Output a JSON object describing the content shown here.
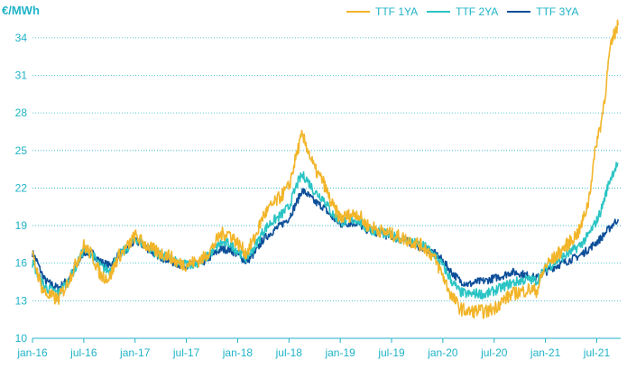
{
  "chart_data": {
    "type": "line",
    "ylabel": "€/MWh",
    "ylim": [
      10,
      35
    ],
    "yticks": [
      10,
      13,
      16,
      19,
      22,
      25,
      28,
      31,
      34
    ],
    "grid": "horizontal dotted",
    "legend_position": "top-right",
    "x_tick_labels": [
      "jan-16",
      "jul-16",
      "jan-17",
      "jul-17",
      "jan-18",
      "jul-18",
      "jan-19",
      "jul-19",
      "jan-20",
      "jul-20",
      "jan-21",
      "jul-21"
    ],
    "x_tick_months": [
      0,
      6,
      12,
      18,
      24,
      30,
      36,
      42,
      48,
      54,
      60,
      66
    ],
    "x_month_range": [
      0,
      68.8
    ],
    "series_colors": [
      "#f2b52a",
      "#2bc4c4",
      "#0c4e99"
    ],
    "series": [
      {
        "name": "TTF 1YA",
        "x": [
          0,
          0.5,
          1,
          1.5,
          2,
          3,
          4,
          5,
          6,
          7,
          8,
          9,
          10,
          11,
          12,
          13,
          14,
          15,
          16,
          17,
          18,
          19,
          20,
          21,
          22,
          23,
          24,
          25,
          26,
          27,
          28,
          29,
          30,
          31,
          31.5,
          32,
          33,
          34,
          35,
          36,
          37,
          38,
          39,
          40,
          41,
          42,
          43,
          44,
          45,
          46,
          47,
          48,
          49,
          50,
          51,
          52,
          53,
          54,
          55,
          56,
          57,
          58,
          59,
          60,
          61,
          62,
          63,
          64,
          65,
          66,
          66.5,
          67,
          67.5,
          68,
          68.5
        ],
        "values": [
          16.5,
          15.5,
          14.2,
          13.6,
          13.4,
          13.1,
          14.3,
          15.8,
          17.4,
          16.6,
          15.0,
          14.8,
          16.5,
          17.2,
          18.2,
          17.6,
          17.1,
          16.8,
          16.6,
          16.0,
          15.9,
          16.1,
          16.4,
          17.2,
          18.3,
          18.4,
          17.6,
          16.8,
          18.0,
          19.8,
          20.6,
          21.3,
          22.1,
          25.0,
          26.1,
          25.5,
          23.5,
          22.5,
          20.7,
          19.6,
          19.8,
          20.0,
          19.1,
          18.8,
          18.5,
          18.3,
          18.1,
          17.8,
          17.6,
          17.2,
          16.4,
          15.0,
          13.4,
          12.4,
          12.1,
          12.2,
          12.1,
          12.4,
          13.0,
          13.5,
          13.7,
          13.9,
          13.8,
          15.8,
          16.4,
          17.1,
          17.8,
          18.6,
          20.8,
          25.8,
          27.2,
          29.6,
          32.8,
          34.2,
          35.0
        ]
      },
      {
        "name": "TTF 2YA",
        "x": [
          0,
          0.5,
          1,
          1.5,
          2,
          3,
          4,
          5,
          6,
          7,
          8,
          9,
          10,
          11,
          12,
          13,
          14,
          15,
          16,
          17,
          18,
          19,
          20,
          21,
          22,
          23,
          24,
          25,
          26,
          27,
          28,
          29,
          30,
          31,
          31.5,
          32,
          33,
          34,
          35,
          36,
          37,
          38,
          39,
          40,
          41,
          42,
          43,
          44,
          45,
          46,
          47,
          48,
          49,
          50,
          51,
          52,
          53,
          54,
          55,
          56,
          57,
          58,
          59,
          60,
          61,
          62,
          63,
          64,
          65,
          66,
          66.5,
          67,
          67.5,
          68,
          68.5
        ],
        "values": [
          16.0,
          15.3,
          14.6,
          14.1,
          13.9,
          13.6,
          14.4,
          15.6,
          17.1,
          16.7,
          15.7,
          15.4,
          16.6,
          17.1,
          18.0,
          17.5,
          17.0,
          16.6,
          16.4,
          16.0,
          15.9,
          16.0,
          16.2,
          16.9,
          17.6,
          17.6,
          17.0,
          16.4,
          17.3,
          18.6,
          19.3,
          19.8,
          20.5,
          22.4,
          23.0,
          22.8,
          21.7,
          21.2,
          20.0,
          19.3,
          19.4,
          19.5,
          18.8,
          18.6,
          18.4,
          18.2,
          18.0,
          17.8,
          17.5,
          17.3,
          16.7,
          15.8,
          14.6,
          13.7,
          13.5,
          13.6,
          13.5,
          13.8,
          14.1,
          14.4,
          14.6,
          14.7,
          14.6,
          15.6,
          16.0,
          16.5,
          16.9,
          17.4,
          18.2,
          19.4,
          20.2,
          21.4,
          22.6,
          23.4,
          24.0
        ]
      },
      {
        "name": "TTF 3YA",
        "x": [
          0,
          0.5,
          1,
          1.5,
          2,
          3,
          4,
          5,
          6,
          7,
          8,
          9,
          10,
          11,
          12,
          13,
          14,
          15,
          16,
          17,
          18,
          19,
          20,
          21,
          22,
          23,
          24,
          25,
          26,
          27,
          28,
          29,
          30,
          31,
          31.5,
          32,
          33,
          34,
          35,
          36,
          37,
          38,
          39,
          40,
          41,
          42,
          43,
          44,
          45,
          46,
          47,
          48,
          49,
          50,
          51,
          52,
          53,
          54,
          55,
          56,
          57,
          58,
          59,
          60,
          61,
          62,
          63,
          64,
          65,
          66,
          66.5,
          67,
          67.5,
          68,
          68.5
        ],
        "values": [
          16.8,
          16.2,
          15.3,
          14.6,
          14.4,
          14.0,
          14.6,
          15.5,
          16.9,
          16.8,
          16.1,
          15.8,
          16.6,
          17.0,
          17.8,
          17.4,
          16.9,
          16.5,
          16.2,
          15.9,
          15.8,
          15.9,
          16.1,
          16.6,
          17.1,
          17.1,
          16.7,
          16.1,
          16.8,
          17.9,
          18.5,
          19.0,
          19.6,
          21.0,
          21.8,
          21.6,
          20.9,
          20.5,
          19.7,
          19.1,
          19.2,
          19.2,
          18.7,
          18.5,
          18.3,
          18.1,
          17.9,
          17.7,
          17.4,
          17.2,
          16.8,
          16.2,
          15.3,
          14.6,
          14.3,
          14.5,
          14.6,
          14.8,
          15.0,
          15.3,
          15.2,
          15.0,
          14.8,
          15.3,
          15.7,
          16.0,
          16.3,
          16.6,
          17.1,
          17.7,
          18.0,
          18.4,
          18.8,
          19.2,
          19.5
        ]
      }
    ]
  }
}
